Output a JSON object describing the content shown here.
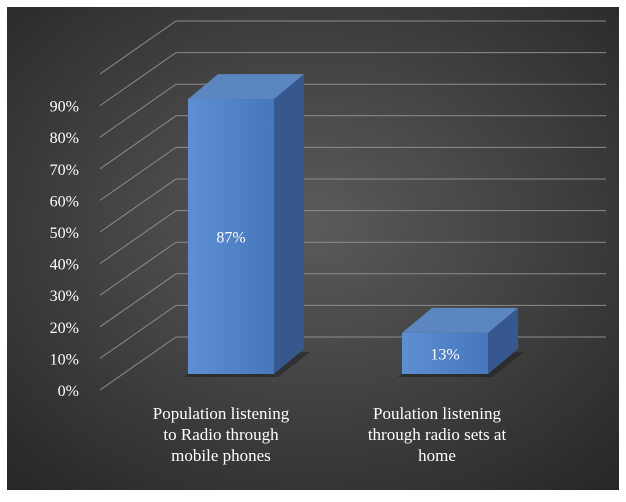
{
  "chart_data": {
    "type": "bar",
    "style": "3d-column",
    "categories": [
      [
        "Population listening",
        "to Radio through",
        "mobile phones"
      ],
      [
        "Poulation listening",
        "through radio sets at",
        "home"
      ]
    ],
    "values": [
      87,
      13
    ],
    "data_labels": [
      "87%",
      "13%"
    ],
    "y_ticks": [
      "0%",
      "10%",
      "20%",
      "30%",
      "40%",
      "50%",
      "60%",
      "70%",
      "80%",
      "90%"
    ],
    "ylim": [
      0,
      100
    ],
    "title": "",
    "xlabel": "",
    "ylabel": "",
    "grid": true,
    "legend": "none",
    "colors": {
      "bar_front": "#4F81C7",
      "bar_top": "#5B86C0",
      "bar_side": "#36588F",
      "bar_shadow": "#1F1F1F",
      "text": "#ffffff",
      "gridline": "#8C8C8C",
      "background_center": "#5B5B5B",
      "background_edge": "#262626",
      "frame": "#FFFFFF"
    }
  }
}
